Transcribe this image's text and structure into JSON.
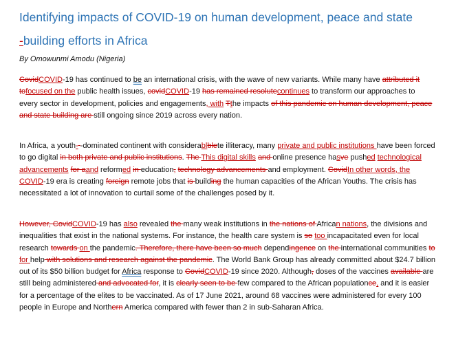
{
  "document": {
    "title_line1": "Identifying impacts of COVID-19 on human development, peace and state",
    "title_line2": "-building efforts in Africa",
    "title_dash": "-",
    "title_rest": "building efforts in Africa",
    "byline": "By Omowunmi Amodu (Nigeria)",
    "p1": [
      {
        "t": "Covid",
        "k": "del"
      },
      {
        "t": "COVID",
        "k": "ins"
      },
      {
        "t": "-19 has continued to ",
        "k": "n"
      },
      {
        "t": "be",
        "k": "u"
      },
      {
        "t": " an international crisis, with the wave of new variants. While many have ",
        "k": "n"
      },
      {
        "t": "attributed it to",
        "k": "del"
      },
      {
        "t": "focused on the",
        "k": "ins"
      },
      {
        "t": " public health issues, ",
        "k": "n"
      },
      {
        "t": "covid",
        "k": "del"
      },
      {
        "t": "COVID",
        "k": "ins"
      },
      {
        "t": "-19 ",
        "k": "n"
      },
      {
        "t": "has remained resolute",
        "k": "del"
      },
      {
        "t": "continues",
        "k": "ins"
      },
      {
        "t": " to transform our approaches to every sector in development, policies and engagements",
        "k": "n"
      },
      {
        "t": ", with",
        "k": "ins"
      },
      {
        "t": " ",
        "k": "n"
      },
      {
        "t": "T",
        "k": "del"
      },
      {
        "t": "t",
        "k": "ins"
      },
      {
        "t": "he impacts ",
        "k": "n"
      },
      {
        "t": "of this pandemic on human development, peace and state building are ",
        "k": "del"
      },
      {
        "t": "still ongoing since 2019 across every nation.",
        "k": "n"
      }
    ],
    "p2": [
      {
        "t": "In Africa, a youth",
        "k": "n"
      },
      {
        "t": "-",
        "k": "ins"
      },
      {
        "t": " ",
        "k": "del"
      },
      {
        "t": "-dominated continent with considera",
        "k": "n"
      },
      {
        "t": "bl",
        "k": "ins"
      },
      {
        "t": "ble",
        "k": "del"
      },
      {
        "t": "te illiteracy, many ",
        "k": "n"
      },
      {
        "t": "private and public institutions ",
        "k": "ins"
      },
      {
        "t": "have been forced to go digital ",
        "k": "n"
      },
      {
        "t": "in both private and public institutions",
        "k": "del"
      },
      {
        "t": ". ",
        "k": "n"
      },
      {
        "t": "The ",
        "k": "del"
      },
      {
        "t": "This digital skills",
        "k": "ins"
      },
      {
        "t": " ",
        "k": "n"
      },
      {
        "t": "and ",
        "k": "del"
      },
      {
        "t": "online presence ha",
        "k": "n"
      },
      {
        "t": "s",
        "k": "ins"
      },
      {
        "t": "ve",
        "k": "del"
      },
      {
        "t": " push",
        "k": "n"
      },
      {
        "t": "ed",
        "k": "ins"
      },
      {
        "t": " ",
        "k": "n"
      },
      {
        "t": "technological advancements",
        "k": "ins"
      },
      {
        "t": " ",
        "k": "n"
      },
      {
        "t": "for a",
        "k": "del"
      },
      {
        "t": "and",
        "k": "ins"
      },
      {
        "t": " reform",
        "k": "n"
      },
      {
        "t": "ed",
        "k": "ins"
      },
      {
        "t": " ",
        "k": "n"
      },
      {
        "t": "in ",
        "k": "del"
      },
      {
        "t": "education",
        "k": "n"
      },
      {
        "t": ",",
        "k": "del"
      },
      {
        "t": " ",
        "k": "n"
      },
      {
        "t": "technology advancements ",
        "k": "del"
      },
      {
        "t": "and employment. ",
        "k": "n"
      },
      {
        "t": "Covid",
        "k": "del"
      },
      {
        "t": "In other words, the COVID",
        "k": "ins"
      },
      {
        "t": "-19 era is creating ",
        "k": "n"
      },
      {
        "t": "foreign",
        "k": "del"
      },
      {
        "t": " remote jobs that ",
        "k": "n"
      },
      {
        "t": "is ",
        "k": "del"
      },
      {
        "t": "build",
        "k": "n"
      },
      {
        "t": "ing",
        "k": "del"
      },
      {
        "t": " the human capacities of the African Youths. The crisis has necessitated a lot of innovation to curtail some of the challenges posed by it.",
        "k": "n"
      }
    ],
    "p3": [
      {
        "t": "However, Covid",
        "k": "del"
      },
      {
        "t": "COVID",
        "k": "ins"
      },
      {
        "t": "-19 has ",
        "k": "n"
      },
      {
        "t": "also",
        "k": "ins"
      },
      {
        "t": " revealed ",
        "k": "n"
      },
      {
        "t": "the ",
        "k": "del"
      },
      {
        "t": "many weak institutions in ",
        "k": "n"
      },
      {
        "t": "the nations of ",
        "k": "del"
      },
      {
        "t": "Africa",
        "k": "n"
      },
      {
        "t": "n nations",
        "k": "ins"
      },
      {
        "t": ", the divisions and inequalities that exist in the national systems. For instance, the health care system is ",
        "k": "n"
      },
      {
        "t": "so",
        "k": "del"
      },
      {
        "t": " ",
        "k": "n"
      },
      {
        "t": "too ",
        "k": "ins"
      },
      {
        "t": "incapacitated even for local research ",
        "k": "n"
      },
      {
        "t": "towards ",
        "k": "del"
      },
      {
        "t": "on ",
        "k": "ins"
      },
      {
        "t": "the pandemic",
        "k": "n"
      },
      {
        "t": ". Therefore, there have been so much",
        "k": "del"
      },
      {
        "t": " depend",
        "k": "n"
      },
      {
        "t": "ingence",
        "k": "del"
      },
      {
        "t": " on ",
        "k": "n"
      },
      {
        "t": "the ",
        "k": "del"
      },
      {
        "t": "international communities ",
        "k": "n"
      },
      {
        "t": "to ",
        "k": "del"
      },
      {
        "t": "for ",
        "k": "ins"
      },
      {
        "t": "help",
        "k": "n"
      },
      {
        "t": " with solutions and research against the pandemic",
        "k": "del"
      },
      {
        "t": ". The World Bank Group has already committed about $24.7 billion out of its $50 billion budget for ",
        "k": "n"
      },
      {
        "t": "Africa",
        "k": "u"
      },
      {
        "t": " response to ",
        "k": "n"
      },
      {
        "t": "Covid",
        "k": "del"
      },
      {
        "t": "COVID",
        "k": "ins"
      },
      {
        "t": "-19 since 2020. Although",
        "k": "n"
      },
      {
        "t": ",",
        "k": "del"
      },
      {
        "t": " doses of the vaccines ",
        "k": "n"
      },
      {
        "t": "available ",
        "k": "del"
      },
      {
        "t": "are still being administered",
        "k": "n"
      },
      {
        "t": " and advocated for",
        "k": "del"
      },
      {
        "t": ", it is ",
        "k": "n"
      },
      {
        "t": "clearly seen to be ",
        "k": "del"
      },
      {
        "t": "few compared to the African population",
        "k": "n"
      },
      {
        "t": "ce",
        "k": "del"
      },
      {
        "t": ",",
        "k": "ins"
      },
      {
        "t": " and it is easier for a percentage of the elites to be vaccinated. As of 17 June 2021, around 68 vaccines were administered for every 100 people in Europe and North",
        "k": "n"
      },
      {
        "t": "ern",
        "k": "del"
      },
      {
        "t": " America compared with fewer than 2 in sub-Saharan Africa.",
        "k": "n"
      }
    ],
    "colors": {
      "heading": "#2e74b5",
      "revision": "#c00000",
      "text": "#111111"
    }
  }
}
